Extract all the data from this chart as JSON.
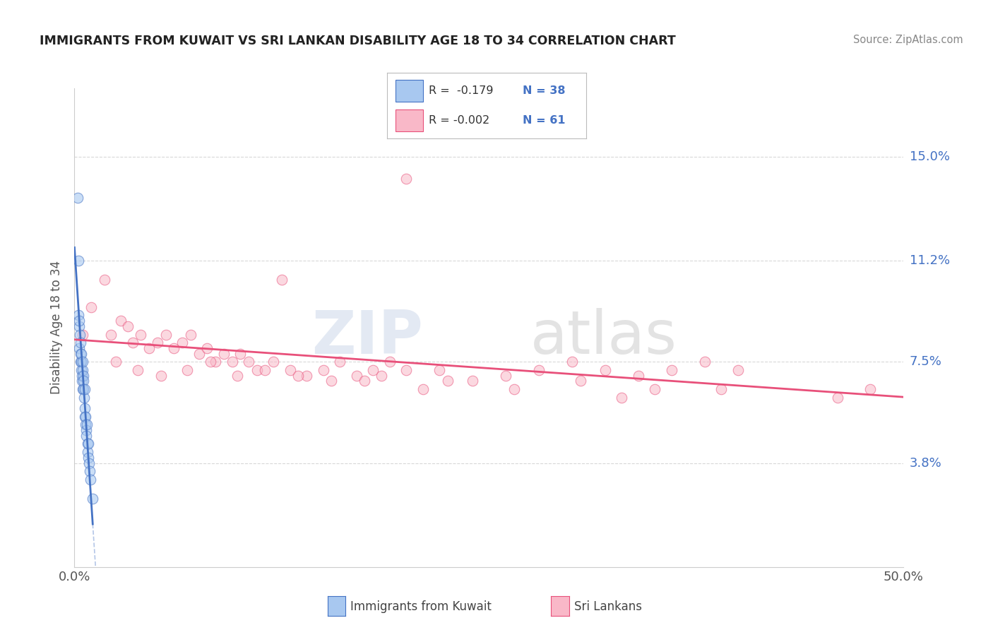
{
  "title": "IMMIGRANTS FROM KUWAIT VS SRI LANKAN DISABILITY AGE 18 TO 34 CORRELATION CHART",
  "source": "Source: ZipAtlas.com",
  "ylabel": "Disability Age 18 to 34",
  "xlim": [
    0.0,
    50.0
  ],
  "ylim": [
    0.0,
    17.5
  ],
  "yticks": [
    3.8,
    7.5,
    11.2,
    15.0
  ],
  "xticks": [
    0.0,
    50.0
  ],
  "xtick_labels": [
    "0.0%",
    "50.0%"
  ],
  "ytick_labels": [
    "3.8%",
    "7.5%",
    "11.2%",
    "15.0%"
  ],
  "color_blue": "#a8c8f0",
  "color_pink": "#f9b8c8",
  "line_blue": "#4472c4",
  "line_pink": "#e8507a",
  "watermark_zip": "ZIP",
  "watermark_atlas": "atlas",
  "background_color": "#ffffff",
  "grid_color": "#d8d8d8",
  "title_color": "#222222",
  "axis_label_color": "#555555",
  "tick_color_x": "#555555",
  "tick_color_y": "#4472c4",
  "blue_x": [
    0.2,
    0.22,
    0.25,
    0.28,
    0.3,
    0.3,
    0.32,
    0.35,
    0.35,
    0.38,
    0.4,
    0.4,
    0.42,
    0.45,
    0.45,
    0.48,
    0.5,
    0.5,
    0.52,
    0.55,
    0.55,
    0.58,
    0.6,
    0.6,
    0.62,
    0.65,
    0.68,
    0.7,
    0.72,
    0.75,
    0.78,
    0.8,
    0.82,
    0.85,
    0.88,
    0.9,
    0.95,
    1.1
  ],
  "blue_y": [
    13.5,
    11.2,
    9.2,
    8.8,
    9.0,
    8.0,
    8.5,
    7.8,
    7.5,
    8.2,
    7.5,
    7.2,
    7.8,
    6.8,
    7.0,
    7.2,
    7.5,
    6.5,
    7.0,
    6.8,
    6.5,
    6.2,
    6.5,
    5.8,
    5.5,
    5.5,
    5.2,
    5.0,
    4.8,
    5.2,
    4.5,
    4.2,
    4.5,
    4.0,
    3.8,
    3.5,
    3.2,
    2.5
  ],
  "pink_x": [
    0.5,
    1.0,
    1.8,
    2.2,
    2.8,
    3.2,
    3.5,
    4.0,
    4.5,
    5.0,
    5.5,
    6.0,
    6.5,
    7.0,
    7.5,
    8.0,
    8.5,
    9.0,
    9.5,
    10.0,
    10.5,
    11.0,
    12.0,
    13.0,
    14.0,
    15.0,
    16.0,
    17.0,
    18.0,
    19.0,
    20.0,
    22.0,
    24.0,
    26.0,
    28.0,
    30.0,
    32.0,
    34.0,
    36.0,
    38.0,
    40.0,
    2.5,
    3.8,
    5.2,
    6.8,
    8.2,
    9.8,
    11.5,
    13.5,
    15.5,
    18.5,
    22.5,
    26.5,
    30.5,
    35.0,
    39.0,
    46.0,
    48.0,
    21.0,
    33.0,
    17.5
  ],
  "pink_y": [
    8.5,
    9.5,
    10.5,
    8.5,
    9.0,
    8.8,
    8.2,
    8.5,
    8.0,
    8.2,
    8.5,
    8.0,
    8.2,
    8.5,
    7.8,
    8.0,
    7.5,
    7.8,
    7.5,
    7.8,
    7.5,
    7.2,
    7.5,
    7.2,
    7.0,
    7.2,
    7.5,
    7.0,
    7.2,
    7.5,
    7.2,
    7.2,
    6.8,
    7.0,
    7.2,
    7.5,
    7.2,
    7.0,
    7.2,
    7.5,
    7.2,
    7.5,
    7.2,
    7.0,
    7.2,
    7.5,
    7.0,
    7.2,
    7.0,
    6.8,
    7.0,
    6.8,
    6.5,
    6.8,
    6.5,
    6.5,
    6.2,
    6.5,
    6.5,
    6.2,
    6.8
  ],
  "pink_outlier_x": [
    20.0
  ],
  "pink_outlier_y": [
    14.2
  ],
  "pink_outlier2_x": [
    12.5
  ],
  "pink_outlier2_y": [
    10.5
  ]
}
